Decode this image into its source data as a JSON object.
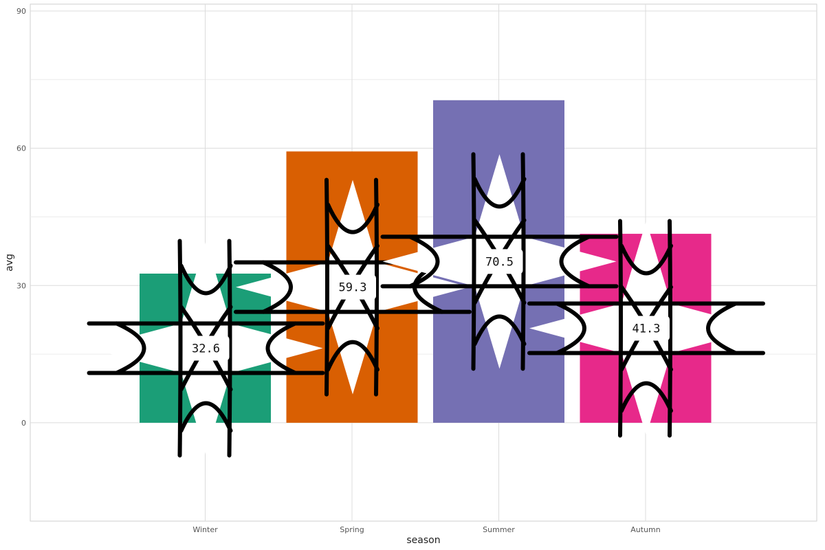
{
  "chart_data": {
    "type": "bar",
    "title": "",
    "xlabel": "season",
    "ylabel": "avg",
    "categories": [
      "Winter",
      "Spring",
      "Summer",
      "Autumn"
    ],
    "values": [
      32.6,
      59.3,
      70.5,
      41.3
    ],
    "value_labels": [
      "32.6",
      "59.3",
      "70.5",
      "41.3"
    ],
    "colors": [
      "#1b9e77",
      "#d95f02",
      "#7570b3",
      "#e7298a"
    ],
    "ylim": [
      -21.5,
      91.5
    ],
    "yticks": [
      0,
      30,
      60,
      90
    ],
    "ytick_labels": [
      "0",
      "30",
      "60",
      "90"
    ],
    "grid": true,
    "legend": "none",
    "decoration": "four-pointed-star-outline"
  }
}
